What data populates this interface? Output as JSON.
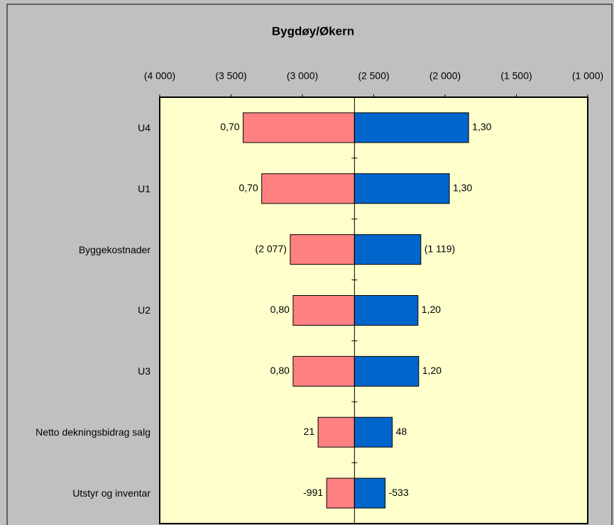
{
  "chart_data": {
    "type": "tornado",
    "title": "Bygdøy/Økern",
    "categories": [
      "U4",
      "U1",
      "Byggekostnader",
      "U2",
      "U3",
      "Netto dekningsbidrag salg",
      "Utstyr og inventar"
    ],
    "base": -2635,
    "low": {
      "color": "#ff8080",
      "values": [
        -3415,
        -3285,
        -3085,
        -3065,
        -3065,
        -2890,
        -2830
      ],
      "labels": [
        "0,70",
        "0,70",
        "(2 077)",
        "0,80",
        "0,80",
        "21",
        "-991"
      ]
    },
    "high": {
      "color": "#0066cc",
      "values": [
        -1835,
        -1970,
        -2170,
        -2190,
        -2185,
        -2370,
        -2420
      ],
      "labels": [
        "1,30",
        "1,30",
        "(1 119)",
        "1,20",
        "1,20",
        "48",
        "-533"
      ]
    },
    "xlim": [
      -4000,
      -1000
    ],
    "xticks": [
      {
        "value": -4000,
        "label": "(4 000)"
      },
      {
        "value": -3500,
        "label": "(3 500)"
      },
      {
        "value": -3000,
        "label": "(3 000)"
      },
      {
        "value": -2500,
        "label": "(2 500)"
      },
      {
        "value": -2000,
        "label": "(2 000)"
      },
      {
        "value": -1500,
        "label": "(1 500)"
      },
      {
        "value": -1000,
        "label": "(1 000)"
      }
    ]
  }
}
